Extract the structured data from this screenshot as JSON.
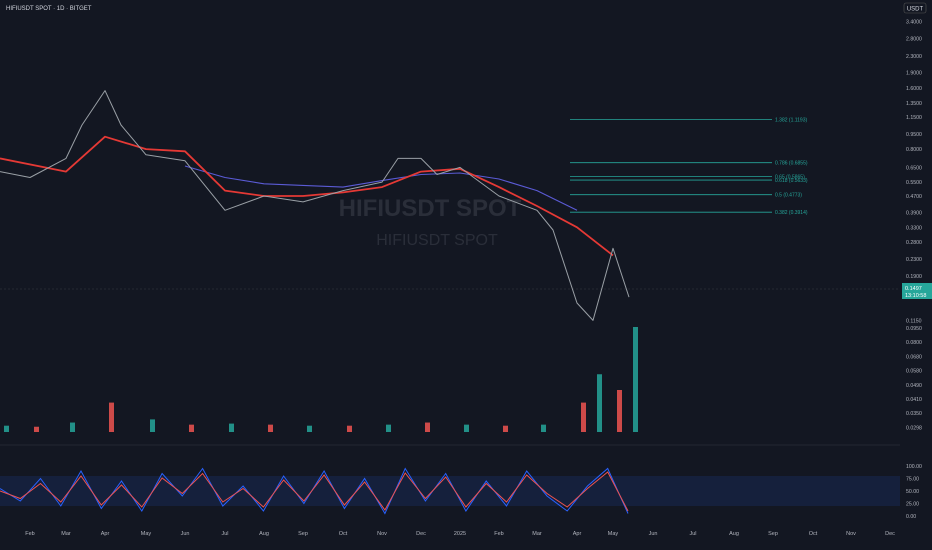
{
  "header": {
    "symbol_title": "HIFIUSDT SPOT · 1D · BITGET",
    "currency": "USDT"
  },
  "watermark": {
    "big": "HIFIUSDT SPOT",
    "small": "HIFIUSDT SPOT"
  },
  "price_badge": {
    "value": "0.1497",
    "countdown": "13:10:58"
  },
  "colors": {
    "background": "#131722",
    "ema_red": "#e53935",
    "ema_green": "#2e7d32",
    "ma_blue": "#5b5bd6",
    "fib_line": "#26a69a",
    "stoch_k": "#2962ff",
    "stoch_d": "#ef5350",
    "volume_up": "#26a69a",
    "volume_down": "#ef5350"
  },
  "chart_data": {
    "type": "line",
    "title": "HIFIUSDT SPOT · 1D · BITGET",
    "x_axis": {
      "tick_labels": [
        "Feb",
        "Mar",
        "Apr",
        "May",
        "Jun",
        "Jul",
        "Aug",
        "Sep",
        "Oct",
        "Nov",
        "Dec",
        "2025",
        "Feb",
        "Mar",
        "Apr",
        "May",
        "Jun",
        "Jul",
        "Aug",
        "Sep",
        "Oct",
        "Nov",
        "Dec"
      ]
    },
    "y_axis": {
      "scale": "log",
      "tick_labels": [
        "3.4000",
        "2.8000",
        "2.3000",
        "1.9000",
        "1.6000",
        "1.3500",
        "1.1500",
        "0.9500",
        "0.8000",
        "0.6500",
        "0.5500",
        "0.4700",
        "0.3900",
        "0.3300",
        "0.2800",
        "0.2300",
        "0.1900",
        "0.1600",
        "0.1150",
        "0.0950",
        "0.0800",
        "0.0680",
        "0.0580",
        "0.0490",
        "0.0410",
        "0.0350",
        "0.0298"
      ]
    },
    "price_series": {
      "name": "",
      "x": [
        "Jan",
        "Feb",
        "Mar",
        "Mar",
        "Apr",
        "Apr",
        "May",
        "Jun",
        "Jul",
        "Aug",
        "Sep",
        "Oct",
        "Nov",
        "Nov",
        "Dec",
        "Dec",
        "2025",
        "Feb",
        "Mar",
        "Mar",
        "Apr",
        "Apr",
        "May",
        "May"
      ],
      "values": [
        0.62,
        0.58,
        0.72,
        1.05,
        1.55,
        1.05,
        0.75,
        0.7,
        0.4,
        0.47,
        0.44,
        0.5,
        0.55,
        0.72,
        0.72,
        0.6,
        0.65,
        0.47,
        0.4,
        0.32,
        0.14,
        0.115,
        0.26,
        0.1497
      ]
    },
    "ema_series": {
      "name": "",
      "x": [
        "Jan",
        "Mar",
        "Apr",
        "May",
        "Jun",
        "Jul",
        "Aug",
        "Sep",
        "Oct",
        "Nov",
        "Dec",
        "2025",
        "Feb",
        "Mar",
        "Apr",
        "May"
      ],
      "values": [
        0.72,
        0.62,
        0.92,
        0.8,
        0.78,
        0.5,
        0.47,
        0.47,
        0.49,
        0.52,
        0.62,
        0.64,
        0.52,
        0.42,
        0.33,
        0.24
      ]
    },
    "ma_series": {
      "name": "",
      "x": [
        "Jun",
        "Jul",
        "Aug",
        "Sep",
        "Oct",
        "Nov",
        "Dec",
        "2025",
        "Feb",
        "Mar",
        "Apr"
      ],
      "values": [
        0.66,
        0.58,
        0.54,
        0.53,
        0.52,
        0.56,
        0.6,
        0.61,
        0.57,
        0.5,
        0.4
      ]
    },
    "fib_levels": [
      {
        "label": "1.382 (1.1193)",
        "value": 1.1193
      },
      {
        "label": "0.786 (0.6855)",
        "value": 0.6855
      },
      {
        "label": "0.65 (0.5865)",
        "value": 0.5865
      },
      {
        "label": "0.618 (0.5633)",
        "value": 0.5633
      },
      {
        "label": "0.5 (0.4773)",
        "value": 0.4773
      },
      {
        "label": "0.382 (0.3914)",
        "value": 0.3914
      }
    ],
    "volume": {
      "x": [
        "Jan",
        "Feb",
        "Mar",
        "Apr",
        "May",
        "Jun",
        "Jul",
        "Aug",
        "Sep",
        "Oct",
        "Nov",
        "Dec",
        "2025",
        "Feb",
        "Mar",
        "Apr",
        "Apr",
        "May",
        "May"
      ],
      "values": [
        6,
        5,
        9,
        28,
        12,
        7,
        8,
        7,
        6,
        6,
        7,
        9,
        7,
        6,
        7,
        28,
        55,
        40,
        100
      ]
    },
    "stochastic": {
      "y_tick_labels": [
        "100.00",
        "75.00",
        "50.00",
        "25.00",
        "0.00"
      ],
      "band": [
        20,
        80
      ],
      "k": [
        55,
        30,
        75,
        20,
        90,
        15,
        70,
        10,
        85,
        40,
        95,
        20,
        60,
        10,
        80,
        25,
        90,
        15,
        75,
        5,
        95,
        30,
        85,
        10,
        70,
        20,
        90,
        40,
        10,
        60,
        95,
        5
      ],
      "d": [
        50,
        35,
        65,
        28,
        80,
        22,
        62,
        18,
        76,
        45,
        85,
        28,
        55,
        18,
        72,
        30,
        82,
        22,
        68,
        12,
        86,
        35,
        78,
        18,
        65,
        28,
        82,
        45,
        18,
        55,
        88,
        10
      ]
    }
  }
}
